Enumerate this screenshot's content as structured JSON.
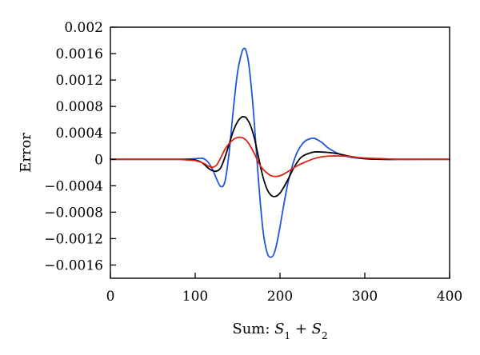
{
  "chart_data": {
    "type": "line",
    "title": "",
    "xlabel": {
      "prefix": "Sum: ",
      "var1": "S",
      "sub1": "1",
      "op": " + ",
      "var2": "S",
      "sub2": "2"
    },
    "ylabel": "Error",
    "xlim": [
      0,
      400
    ],
    "ylim": [
      -0.0018,
      0.002
    ],
    "x_ticks": [
      0,
      100,
      200,
      300,
      400
    ],
    "x_tick_labels": [
      "0",
      "100",
      "200",
      "300",
      "400"
    ],
    "y_ticks": [
      0.002,
      0.0016,
      0.0012,
      0.0008,
      0.0004,
      0,
      -0.0004,
      -0.0008,
      -0.0012,
      -0.0016
    ],
    "y_tick_labels": [
      "0.002",
      "0.0016",
      "0.0012",
      "0.0008",
      "0.0004",
      "0",
      "−0.0004",
      "−0.0008",
      "−0.0012",
      "−0.0016"
    ],
    "grid": false,
    "legend": "none",
    "series": [
      {
        "color": "#2255dd",
        "x": [
          0,
          80,
          90,
          100,
          105,
          110,
          115,
          120,
          125,
          130,
          135,
          140,
          145,
          150,
          155,
          158,
          160,
          163,
          167,
          170,
          175,
          180,
          185,
          190,
          194,
          198,
          202,
          206,
          210,
          215,
          220,
          225,
          230,
          235,
          240,
          245,
          250,
          255,
          260,
          270,
          280,
          290,
          300,
          320,
          340,
          360,
          400
        ],
        "y": [
          0,
          0,
          0,
          1e-05,
          1.5e-05,
          1e-05,
          -4e-05,
          -0.00014,
          -0.00029,
          -0.00041,
          -0.00034,
          0.0001,
          0.00076,
          0.00132,
          0.00162,
          0.00168,
          0.00164,
          0.00146,
          0.00098,
          0.0005,
          -0.00038,
          -0.00108,
          -0.00142,
          -0.00148,
          -0.00139,
          -0.00116,
          -0.00087,
          -0.00058,
          -0.00032,
          -8e-05,
          0.0001,
          0.00021,
          0.00028,
          0.00031,
          0.00032,
          0.00029,
          0.00025,
          0.00019,
          0.000145,
          8e-05,
          4e-05,
          2e-05,
          1e-05,
          0,
          0,
          0,
          0
        ]
      },
      {
        "color": "#000000",
        "x": [
          0,
          80,
          90,
          100,
          105,
          110,
          115,
          120,
          125,
          130,
          135,
          140,
          145,
          150,
          155,
          158,
          160,
          165,
          170,
          175,
          180,
          185,
          190,
          195,
          200,
          205,
          210,
          215,
          220,
          225,
          230,
          240,
          250,
          260,
          270,
          280,
          290,
          300,
          320,
          340,
          360,
          400
        ],
        "y": [
          0,
          0,
          0,
          -1e-05,
          -3e-05,
          -7e-05,
          -0.00013,
          -0.00017,
          -0.00018,
          -0.00013,
          3e-05,
          0.00023,
          0.00043,
          0.00057,
          0.00064,
          0.00064,
          0.00063,
          0.00052,
          0.00031,
          1e-05,
          -0.00027,
          -0.00046,
          -0.00055,
          -0.00056,
          -0.00051,
          -0.00041,
          -0.00029,
          -0.00016,
          -5e-05,
          3e-05,
          7e-05,
          0.00011,
          0.00011,
          0.0001,
          8e-05,
          5e-05,
          3e-05,
          1e-05,
          0,
          0,
          0,
          0
        ]
      },
      {
        "color": "#dd2211",
        "x": [
          0,
          70,
          80,
          90,
          100,
          110,
          115,
          120,
          125,
          130,
          135,
          140,
          145,
          150,
          155,
          160,
          165,
          170,
          175,
          180,
          185,
          190,
          195,
          200,
          205,
          210,
          220,
          230,
          240,
          250,
          260,
          270,
          280,
          290,
          300,
          320,
          340,
          360,
          380,
          400
        ],
        "y": [
          0,
          0,
          0,
          -1e-05,
          -2e-05,
          -6e-05,
          -0.0001,
          -0.00012,
          -9e-05,
          2e-05,
          0.00015,
          0.00024,
          0.0003,
          0.00033,
          0.00033,
          0.00029,
          0.0002,
          8e-05,
          -6e-05,
          -0.00015,
          -0.00021,
          -0.00025,
          -0.00026,
          -0.00025,
          -0.00022,
          -0.00018,
          -0.0001,
          -4e-05,
          1e-05,
          4e-05,
          5e-05,
          5e-05,
          4.5e-05,
          3e-05,
          2e-05,
          1e-05,
          0,
          0,
          0,
          0
        ]
      }
    ]
  }
}
